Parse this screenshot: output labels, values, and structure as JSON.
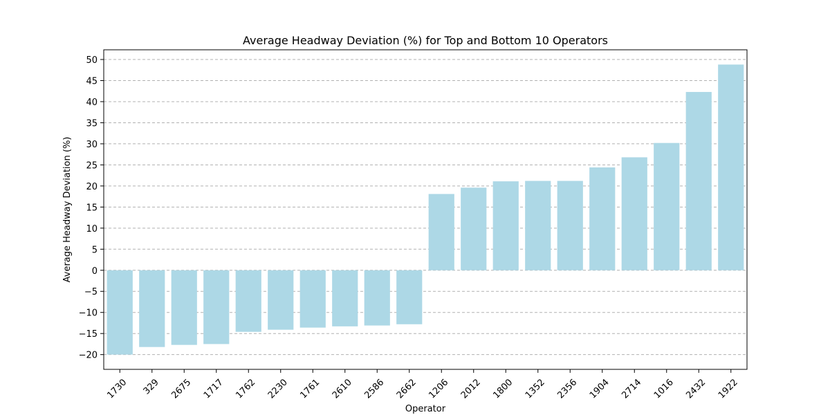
{
  "chart_data": {
    "type": "bar",
    "title": "Average Headway Deviation (%) for Top and Bottom 10 Operators",
    "xlabel": "Operator",
    "ylabel": "Average Headway Deviation (%)",
    "categories": [
      "1730",
      "329",
      "2675",
      "1717",
      "1762",
      "2230",
      "1761",
      "2610",
      "2586",
      "2662",
      "1206",
      "2012",
      "1800",
      "1352",
      "2356",
      "1904",
      "2714",
      "1016",
      "2432",
      "1922"
    ],
    "values": [
      -20.0,
      -18.2,
      -17.7,
      -17.5,
      -14.6,
      -14.1,
      -13.6,
      -13.3,
      -13.1,
      -12.8,
      18.1,
      19.6,
      21.1,
      21.2,
      21.2,
      24.4,
      26.8,
      30.2,
      42.3,
      48.8
    ],
    "ylim": [
      -23.5,
      52.3
    ],
    "yticks": [
      -20,
      -15,
      -10,
      -5,
      0,
      5,
      10,
      15,
      20,
      25,
      30,
      35,
      40,
      45,
      50
    ],
    "grid": "horizontal-dashed",
    "bar_color": "#add8e6",
    "grid_color": "#b0b0b0"
  }
}
